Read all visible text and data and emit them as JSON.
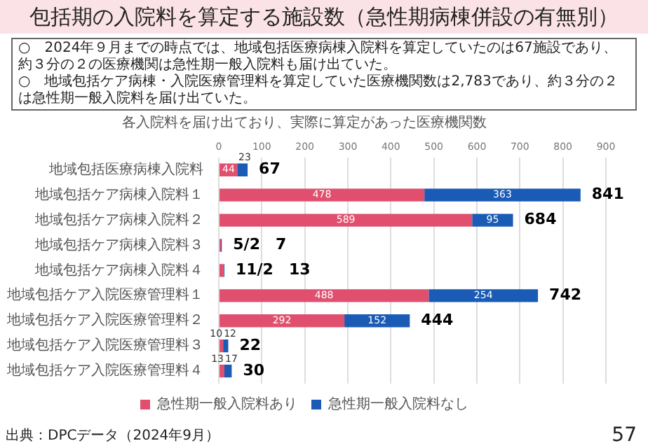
{
  "chart_data": {
    "type": "bar",
    "orientation": "horizontal",
    "stacked": true,
    "title": "包括期の入院料を算定する施設数（急性期病棟併設の有無別）",
    "subtitle": "各入院料を届け出ており、実際に算定があった医療機関数",
    "annotations": [
      "○　2024年９月までの時点では、地域包括医療病棟入院料を算定していたのは67施設であり、約３分の２の医療機関は急性期一般入院料も届け出ていた。",
      "○　地域包括ケア病棟・入院医療管理料を算定していた医療機関数は2,783であり、約３分の２は急性期一般入院料を届け出ていた。",
      "出典：DPCデータ（2024年9月）",
      "57"
    ],
    "categories": [
      "地域包括医療病棟入院料",
      "地域包括ケア病棟入院料１",
      "地域包括ケア病棟入院料２",
      "地域包括ケア病棟入院料３",
      "地域包括ケア病棟入院料４",
      "地域包括ケア入院医療管理料１",
      "地域包括ケア入院医療管理料２",
      "地域包括ケア入院医療管理料３",
      "地域包括ケア入院医療管理料４"
    ],
    "series": [
      {
        "name": "急性期一般入院料あり",
        "color": "#e0506e",
        "values": [
          44,
          478,
          589,
          5,
          11,
          488,
          292,
          10,
          13
        ],
        "value_labels": [
          "44",
          "478",
          "589",
          null,
          null,
          "488",
          "292",
          "10",
          "13"
        ]
      },
      {
        "name": "急性期一般入院料なし",
        "color": "#1a5bb5",
        "values": [
          23,
          363,
          95,
          2,
          2,
          254,
          152,
          12,
          17
        ],
        "value_labels": [
          "23",
          "363",
          "95",
          null,
          null,
          "254",
          "152",
          "12",
          "17"
        ]
      }
    ],
    "totals": [
      "67",
      "841",
      "684",
      "5/2　7",
      "11/2　13",
      "742",
      "444",
      "22",
      "30"
    ],
    "xlim": [
      0,
      900
    ],
    "xticks": [
      0,
      100,
      200,
      300,
      400,
      500,
      600,
      700,
      800,
      900
    ],
    "grid": "x",
    "legend": "bottom"
  }
}
